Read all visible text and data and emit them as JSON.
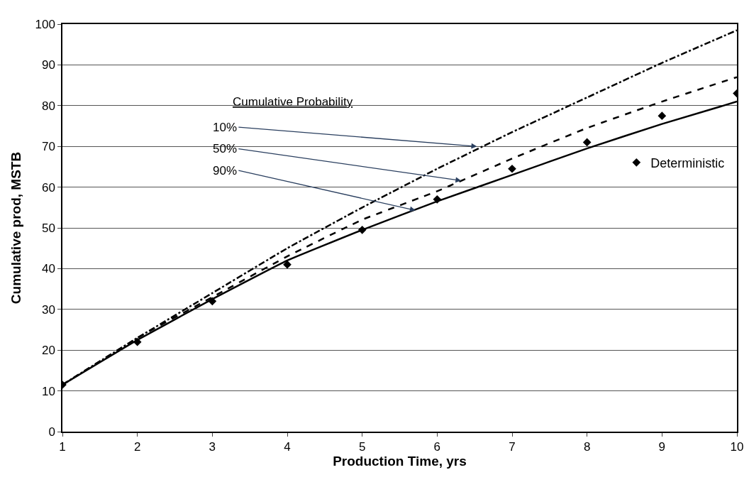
{
  "chart_data": {
    "type": "line",
    "xlabel": "Production Time, yrs",
    "ylabel": "Cumulative prod, MSTB",
    "x": [
      1,
      2,
      3,
      4,
      5,
      6,
      7,
      8,
      9,
      10
    ],
    "xlim": [
      1,
      10
    ],
    "xticks": [
      1,
      2,
      3,
      4,
      5,
      6,
      7,
      8,
      9,
      10
    ],
    "ylim": [
      0,
      100
    ],
    "yticks": [
      0,
      10,
      20,
      30,
      40,
      50,
      60,
      70,
      80,
      90,
      100
    ],
    "grid": "y",
    "legend": "right",
    "marker": "none",
    "series": [
      {
        "color": "#000000",
        "line_style": "dashdot",
        "values": [
          11.5,
          23,
          34,
          45,
          55,
          64.5,
          73.5,
          82,
          90.5,
          98.5
        ]
      },
      {
        "color": "#000000",
        "line_style": "dashed",
        "values": [
          11.5,
          23,
          33,
          43,
          52,
          59,
          67,
          74.5,
          81,
          87
        ]
      },
      {
        "color": "#000000",
        "line_style": "solid",
        "values": [
          11.5,
          22.5,
          32.5,
          42,
          49.5,
          56.5,
          63,
          69.5,
          75.5,
          81
        ]
      },
      {
        "type": "scatter",
        "name": "Deterministic",
        "color": "#000000",
        "marker": "diamond",
        "values": [
          11.5,
          22,
          32,
          41,
          49.5,
          57,
          64.5,
          71,
          77.5,
          83
        ]
      }
    ],
    "annotations": [
      "Cumulative Probability",
      {
        "text": "10%",
        "x": 6.53,
        "y": 70
      },
      {
        "text": "50%",
        "x": 6.32,
        "y": 61.6
      },
      {
        "text": "90%",
        "x": 5.71,
        "y": 54.3
      }
    ]
  }
}
